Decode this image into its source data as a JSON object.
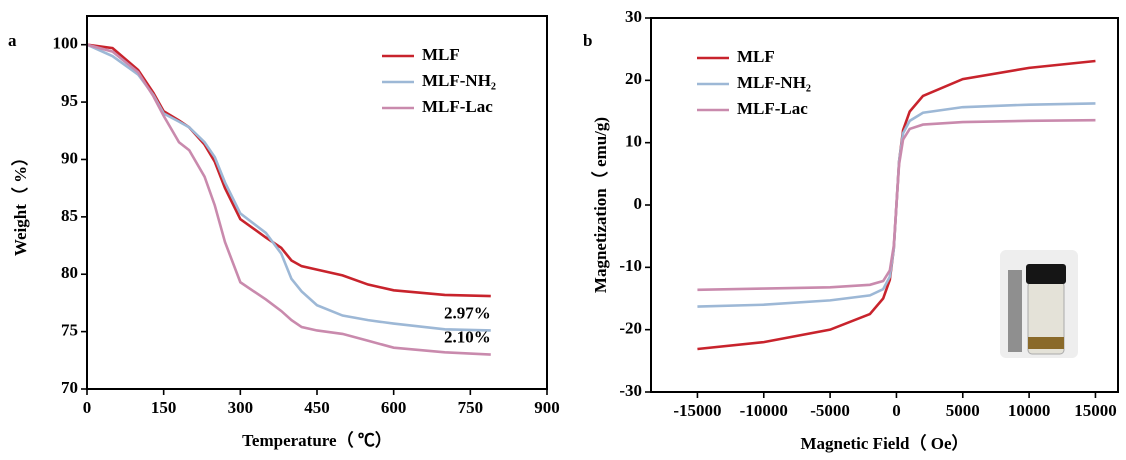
{
  "chart_data": [
    {
      "type": "line",
      "panel_label": "a",
      "x_label": "Temperature（ ℃）",
      "y_label": "Weight（ %）",
      "x": [
        0,
        50,
        100,
        130,
        150,
        180,
        200,
        230,
        250,
        270,
        300,
        350,
        380,
        400,
        420,
        450,
        500,
        550,
        600,
        700,
        790
      ],
      "series": [
        {
          "name": "MLF",
          "color": "#c8232c",
          "values": [
            100,
            99.7,
            97.8,
            95.8,
            94.2,
            93.4,
            92.8,
            91.3,
            89.8,
            87.5,
            84.8,
            83.2,
            82.3,
            81.2,
            80.7,
            80.4,
            79.9,
            79.1,
            78.6,
            78.2,
            78.1
          ]
        },
        {
          "name": "MLF-NH₂",
          "color": "#9db8d6",
          "values": [
            100,
            99.0,
            97.4,
            95.6,
            94.0,
            93.3,
            92.8,
            91.5,
            90.2,
            88.0,
            85.3,
            83.6,
            81.8,
            79.6,
            78.5,
            77.3,
            76.4,
            76.0,
            75.7,
            75.2,
            75.1
          ]
        },
        {
          "name": "MLF-Lac",
          "color": "#c98aad",
          "values": [
            100,
            99.4,
            97.6,
            95.5,
            93.8,
            91.5,
            90.8,
            88.5,
            86.0,
            82.8,
            79.3,
            77.8,
            76.8,
            76.0,
            75.4,
            75.1,
            74.8,
            74.2,
            73.6,
            73.2,
            73.0
          ]
        }
      ],
      "annotations": [
        "2.97%",
        "2.10%"
      ],
      "xlim": [
        0,
        900
      ],
      "xticks": [
        0,
        150,
        300,
        450,
        600,
        750,
        900
      ],
      "ylim": [
        70,
        102.5
      ],
      "yticks": [
        70,
        75,
        80,
        85,
        90,
        95,
        100
      ],
      "legend": "upper right"
    },
    {
      "type": "line",
      "panel_label": "b",
      "x_label": "Magnetic Field（ Oe）",
      "y_label": "Magnetization（ emu/g)",
      "x": [
        -15000,
        -10000,
        -5000,
        -2000,
        -1000,
        -500,
        -200,
        0,
        200,
        500,
        1000,
        2000,
        5000,
        10000,
        15000
      ],
      "series": [
        {
          "name": "MLF",
          "color": "#c8232c",
          "values": [
            -23.1,
            -22,
            -20,
            -17.5,
            -15,
            -12,
            -7,
            0,
            7,
            12,
            15,
            17.5,
            20.2,
            22,
            23.1
          ]
        },
        {
          "name": "MLF-NH₂",
          "color": "#9db8d6",
          "values": [
            -16.3,
            -16,
            -15.3,
            -14.5,
            -13.5,
            -11.5,
            -7,
            0,
            7,
            11.5,
            13.5,
            14.8,
            15.7,
            16.1,
            16.3
          ]
        },
        {
          "name": "MLF-Lac",
          "color": "#c98aad",
          "values": [
            -13.6,
            -13.4,
            -13.2,
            -12.8,
            -12.2,
            -10.5,
            -6.5,
            0,
            6.5,
            10.5,
            12.2,
            12.9,
            13.3,
            13.5,
            13.6
          ]
        }
      ],
      "xlim": [
        -18500,
        16700
      ],
      "xticks": [
        -15000,
        -10000,
        -5000,
        0,
        5000,
        10000,
        15000
      ],
      "ylim": [
        -30,
        30
      ],
      "yticks": [
        -30,
        -20,
        -10,
        0,
        10,
        20,
        30
      ],
      "legend": "upper left"
    }
  ]
}
